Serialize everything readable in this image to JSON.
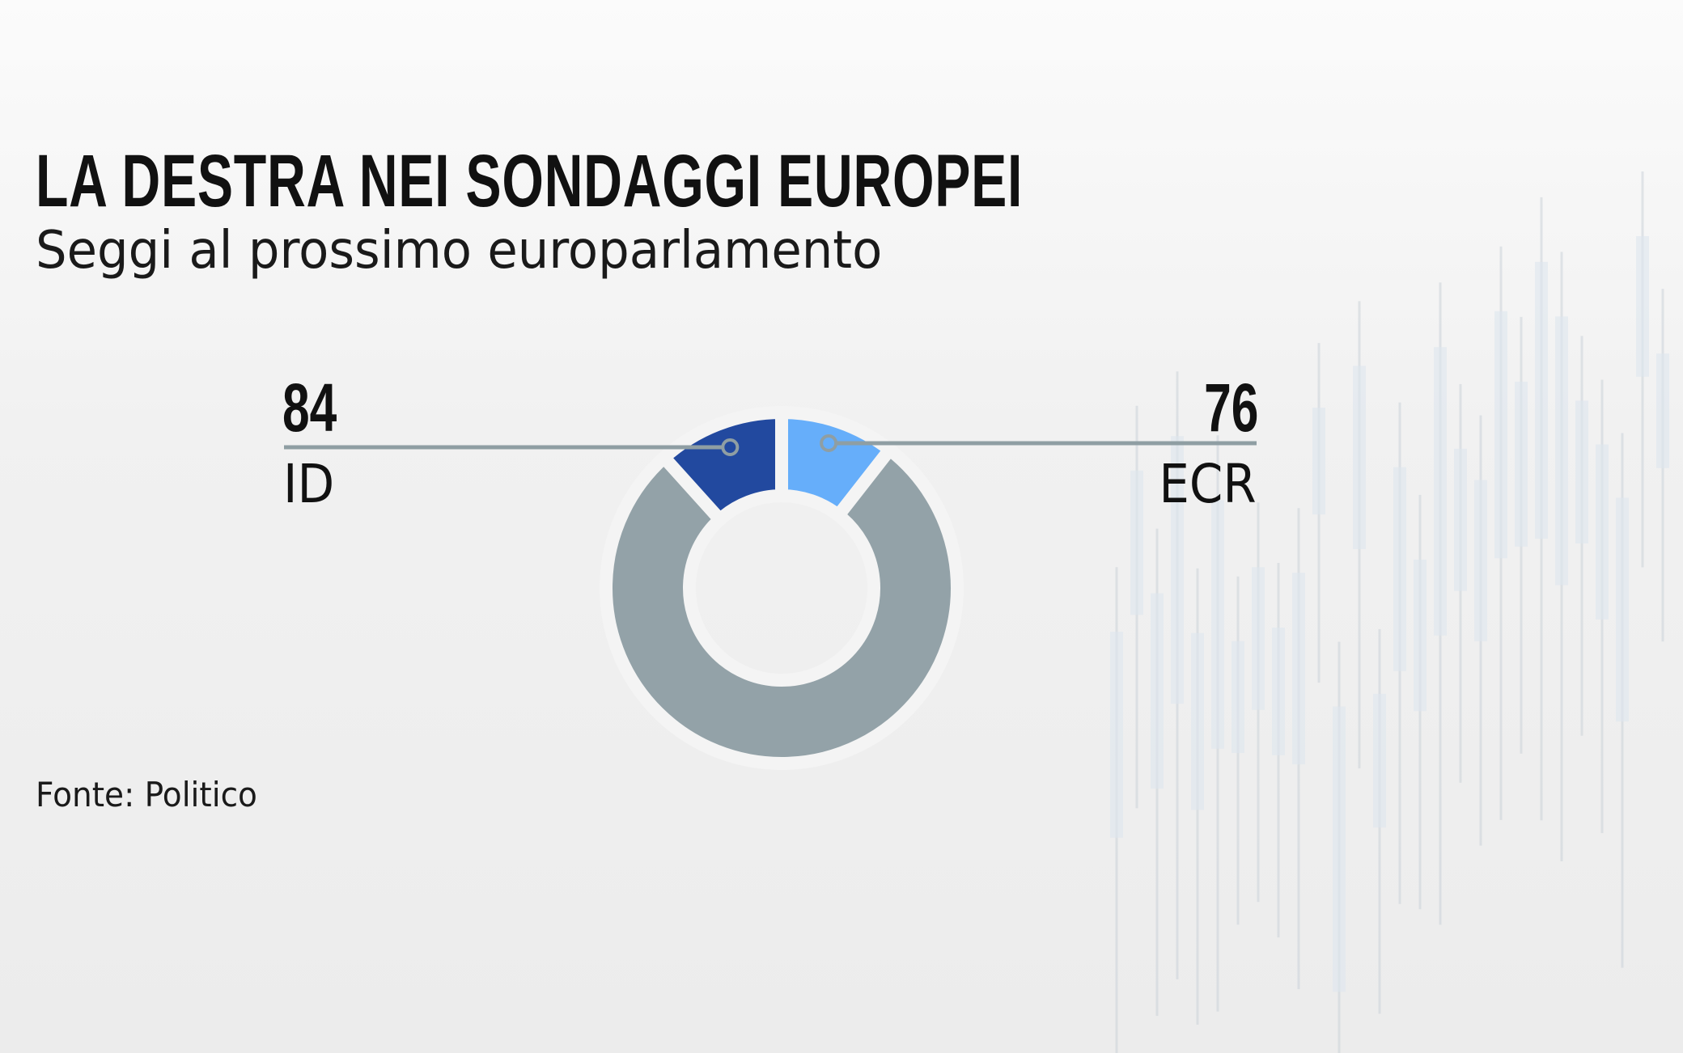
{
  "chart_data": {
    "type": "pie",
    "variant": "donut",
    "title": "LA DESTRA NEI SONDAGGI EUROPEI",
    "subtitle": "Seggi al prossimo europarlamento",
    "source": "Fonte: Politico",
    "slices": [
      {
        "label": "ECR",
        "value": 76,
        "value_label": "76",
        "color": "#66aefa"
      },
      {
        "label": "",
        "value": 560,
        "color": "#93a2a8"
      },
      {
        "label": "ID",
        "value": 84,
        "value_label": "84",
        "color": "#22499f"
      }
    ],
    "leader_line_color": "#8f9ea3"
  }
}
